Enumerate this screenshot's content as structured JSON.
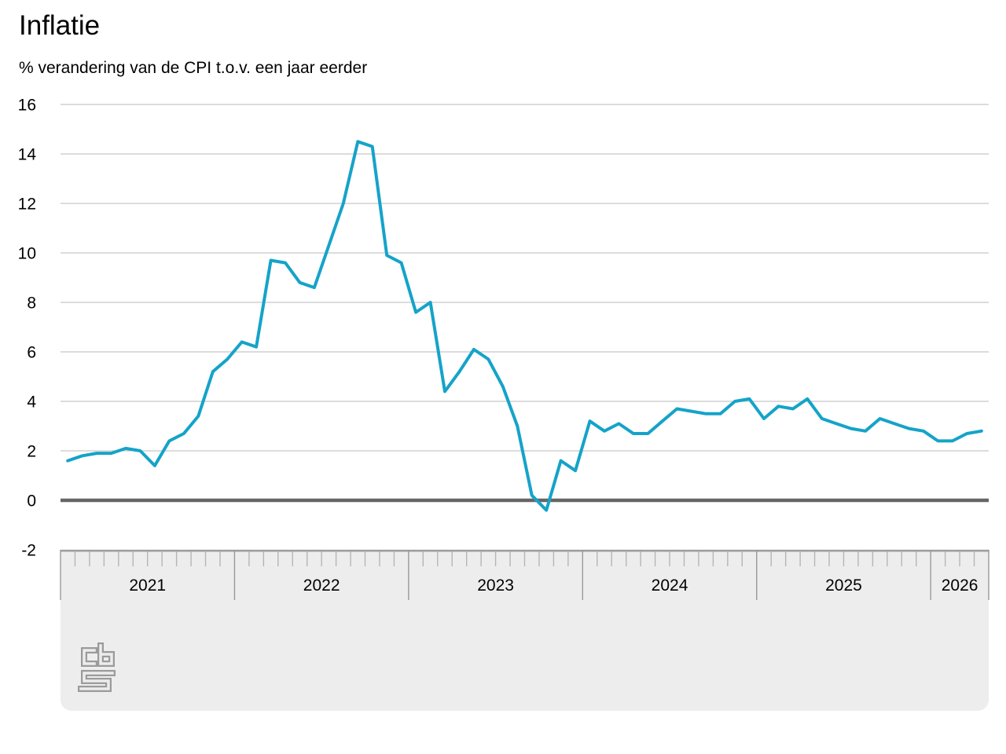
{
  "chart_data": {
    "type": "line",
    "title": "Inflatie",
    "subtitle": "% verandering van de CPI t.o.v. een jaar eerder",
    "frequency": "monthly",
    "legend": "none",
    "x_axis": {
      "years": [
        "2021",
        "2022",
        "2023",
        "2024",
        "2025",
        "2026"
      ],
      "months_per_year": [
        12,
        12,
        12,
        12,
        12,
        4
      ],
      "first_month": "2021-01",
      "last_month": "2026-04"
    },
    "y_axis": {
      "ticks": [
        16,
        14,
        12,
        10,
        8,
        6,
        4,
        2,
        0,
        -2
      ],
      "min": -2,
      "max": 16,
      "grid": true,
      "zero_line": true
    },
    "series": [
      {
        "name": "Inflatie (% verandering CPI t.o.v. een jaar eerder)",
        "color": "#15a3c9",
        "values_by_year": {
          "2021": [
            1.6,
            1.8,
            1.9,
            1.9,
            2.1,
            2.0,
            1.4,
            2.4,
            2.7,
            3.4,
            5.2,
            5.7
          ],
          "2022": [
            6.4,
            6.2,
            9.7,
            9.6,
            8.8,
            8.6,
            10.3,
            12.0,
            14.5,
            14.3,
            9.9,
            9.6
          ],
          "2023": [
            7.6,
            8.0,
            4.4,
            5.2,
            6.1,
            5.7,
            4.6,
            3.0,
            0.2,
            -0.4,
            1.6,
            1.2
          ],
          "2024": [
            3.2,
            2.8,
            3.1,
            2.7,
            2.7,
            3.2,
            3.7,
            3.6,
            3.5,
            3.5,
            4.0,
            4.1
          ],
          "2025": [
            3.3,
            3.8,
            3.7,
            4.1,
            3.3,
            3.1,
            2.9,
            2.8,
            3.3,
            3.1,
            2.9,
            2.8
          ],
          "2026": [
            2.4,
            2.4,
            2.7,
            2.8
          ]
        }
      }
    ]
  },
  "footer": {
    "logo": "cbs-logo",
    "logo_letters": "cbs"
  },
  "colors": {
    "line": "#15a3c9",
    "grid": "#c8c8c8",
    "zero_line": "#666666",
    "band_bg": "#ededed",
    "band_edge": "#9e9e9e",
    "month_tick": "#b5b5b5",
    "year_separator": "#999999",
    "logo": "#9b9b9b",
    "text": "#000000",
    "background": "#ffffff"
  }
}
